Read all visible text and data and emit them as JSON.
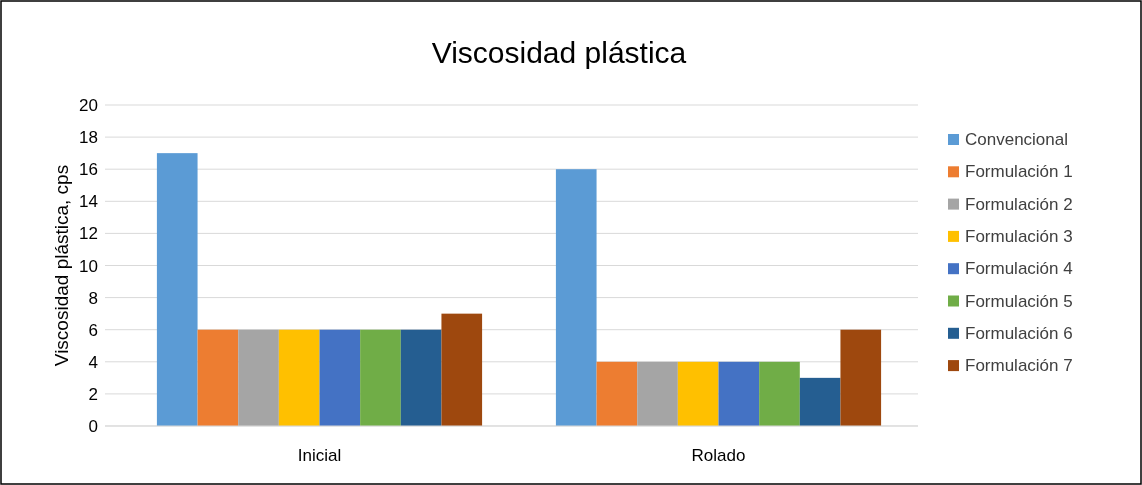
{
  "chart_data": {
    "type": "bar",
    "title": "Viscosidad plástica",
    "ylabel": "Viscosidad plástica, cps",
    "categories": [
      "Inicial",
      "Rolado"
    ],
    "series": [
      {
        "name": "Convencional",
        "color": "#5b9bd5",
        "values": [
          17,
          16
        ]
      },
      {
        "name": "Formulación 1",
        "color": "#ed7d31",
        "values": [
          6,
          4
        ]
      },
      {
        "name": "Formulación 2",
        "color": "#a5a5a5",
        "values": [
          6,
          4
        ]
      },
      {
        "name": "Formulación 3",
        "color": "#ffc000",
        "values": [
          6,
          4
        ]
      },
      {
        "name": "Formulación 4",
        "color": "#4472c4",
        "values": [
          6,
          4
        ]
      },
      {
        "name": "Formulación 5",
        "color": "#70ad47",
        "values": [
          6,
          4
        ]
      },
      {
        "name": "Formulación 6",
        "color": "#255e91",
        "values": [
          6,
          3
        ]
      },
      {
        "name": "Formulación 7",
        "color": "#9e480e",
        "values": [
          7,
          6
        ]
      }
    ],
    "ylim": [
      0,
      20
    ],
    "yticks": [
      0,
      2,
      4,
      6,
      8,
      10,
      12,
      14,
      16,
      18,
      20
    ],
    "grid": "y",
    "legend": "right"
  }
}
